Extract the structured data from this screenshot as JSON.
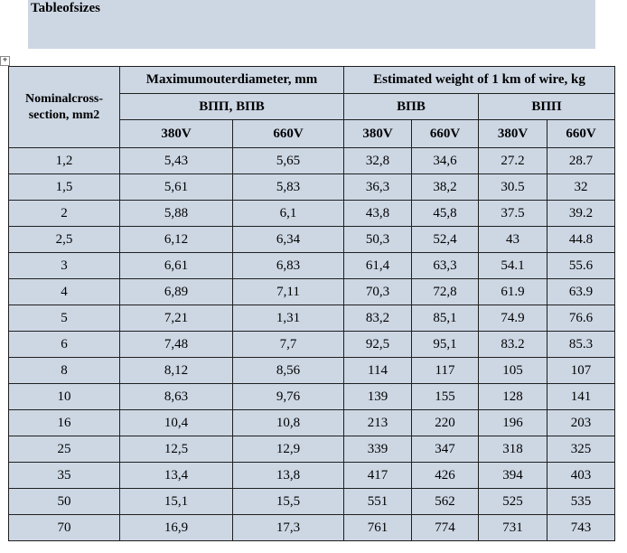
{
  "title": "Tableofsizes",
  "move_handle": "⌖",
  "headers": {
    "nominal": "Nominalcross-section, mm2",
    "max_diameter": "Maximumouterdiameter, mm",
    "est_weight": "Estimated weight of 1 km of wire, kg",
    "group_diam": "ВПП, ВПВ",
    "group_vpv": "ВПВ",
    "group_vpp": "ВПП",
    "v380": "380V",
    "v660": "660V"
  },
  "columns": [
    "Nominalcross-section, mm2",
    "380V",
    "660V",
    "380V",
    "660V",
    "380V",
    "660V"
  ],
  "rows": [
    [
      "1,2",
      "5,43",
      "5,65",
      "32,8",
      "34,6",
      "27.2",
      "28.7"
    ],
    [
      "1,5",
      "5,61",
      "5,83",
      "36,3",
      "38,2",
      "30.5",
      "32"
    ],
    [
      "2",
      "5,88",
      "6,1",
      "43,8",
      "45,8",
      "37.5",
      "39.2"
    ],
    [
      "2,5",
      "6,12",
      "6,34",
      "50,3",
      "52,4",
      "43",
      "44.8"
    ],
    [
      "3",
      "6,61",
      "6,83",
      "61,4",
      "63,3",
      "54.1",
      "55.6"
    ],
    [
      "4",
      "6,89",
      "7,11",
      "70,3",
      "72,8",
      "61.9",
      "63.9"
    ],
    [
      "5",
      "7,21",
      "1,31",
      "83,2",
      "85,1",
      "74.9",
      "76.6"
    ],
    [
      "6",
      "7,48",
      "7,7",
      "92,5",
      "95,1",
      "83.2",
      "85.3"
    ],
    [
      "8",
      "8,12",
      "8,56",
      "114",
      "117",
      "105",
      "107"
    ],
    [
      "10",
      "8,63",
      "9,76",
      "139",
      "155",
      "128",
      "141"
    ],
    [
      "16",
      "10,4",
      "10,8",
      "213",
      "220",
      "196",
      "203"
    ],
    [
      "25",
      "12,5",
      "12,9",
      "339",
      "347",
      "318",
      "325"
    ],
    [
      "35",
      "13,4",
      "13,8",
      "417",
      "426",
      "394",
      "403"
    ],
    [
      "50",
      "15,1",
      "15,5",
      "551",
      "562",
      "525",
      "535"
    ],
    [
      "70",
      "16,9",
      "17,3",
      "761",
      "774",
      "731",
      "743"
    ]
  ],
  "colors": {
    "cell_background": "#cdd7e4",
    "border": "#1f1f1f"
  }
}
